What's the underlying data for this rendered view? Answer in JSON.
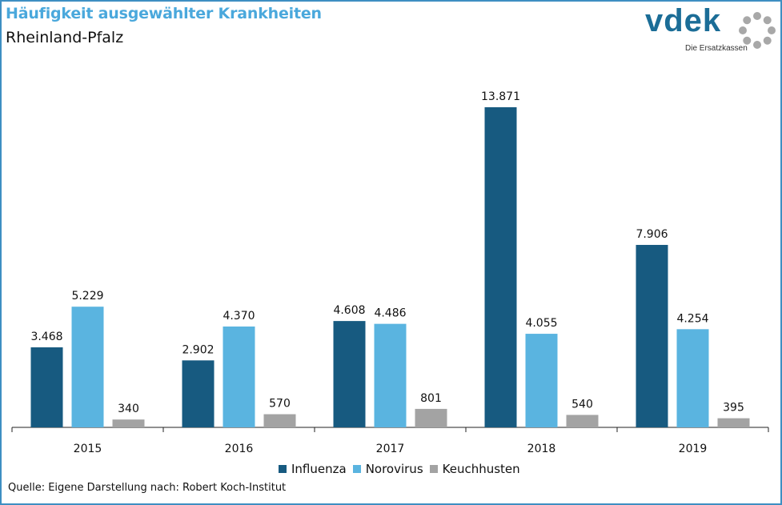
{
  "header": {
    "title": "Häufigkeit ausgewählter Krankheiten",
    "subtitle": "Rheinland-Pfalz"
  },
  "logo": {
    "text": "vdek",
    "tagline": "Die Ersatzkassen",
    "icon": "dotted-ring-icon"
  },
  "colors": {
    "accent": "#4aa8dc",
    "border": "#3e8fc2"
  },
  "chart_data": {
    "type": "bar",
    "categories": [
      "2015",
      "2016",
      "2017",
      "2018",
      "2019"
    ],
    "series": [
      {
        "name": "Influenza",
        "color": "#175a80",
        "values": [
          3468,
          2902,
          4608,
          13871,
          7906
        ],
        "labels": [
          "3.468",
          "2.902",
          "4.608",
          "13.871",
          "7.906"
        ]
      },
      {
        "name": "Norovirus",
        "color": "#5ab4e0",
        "values": [
          5229,
          4370,
          4486,
          4055,
          4254
        ],
        "labels": [
          "5.229",
          "4.370",
          "4.486",
          "4.055",
          "4.254"
        ]
      },
      {
        "name": "Keuchhusten",
        "color": "#a3a3a3",
        "values": [
          340,
          570,
          801,
          540,
          395
        ],
        "labels": [
          "340",
          "570",
          "801",
          "540",
          "395"
        ]
      }
    ],
    "title": "Häufigkeit ausgewählter Krankheiten",
    "subtitle": "Rheinland-Pfalz",
    "xlabel": "",
    "ylabel": "",
    "ylim": [
      0,
      13871
    ],
    "grid": false,
    "legend": "bottom"
  },
  "source": "Quelle: Eigene Darstellung nach: Robert Koch-Institut"
}
